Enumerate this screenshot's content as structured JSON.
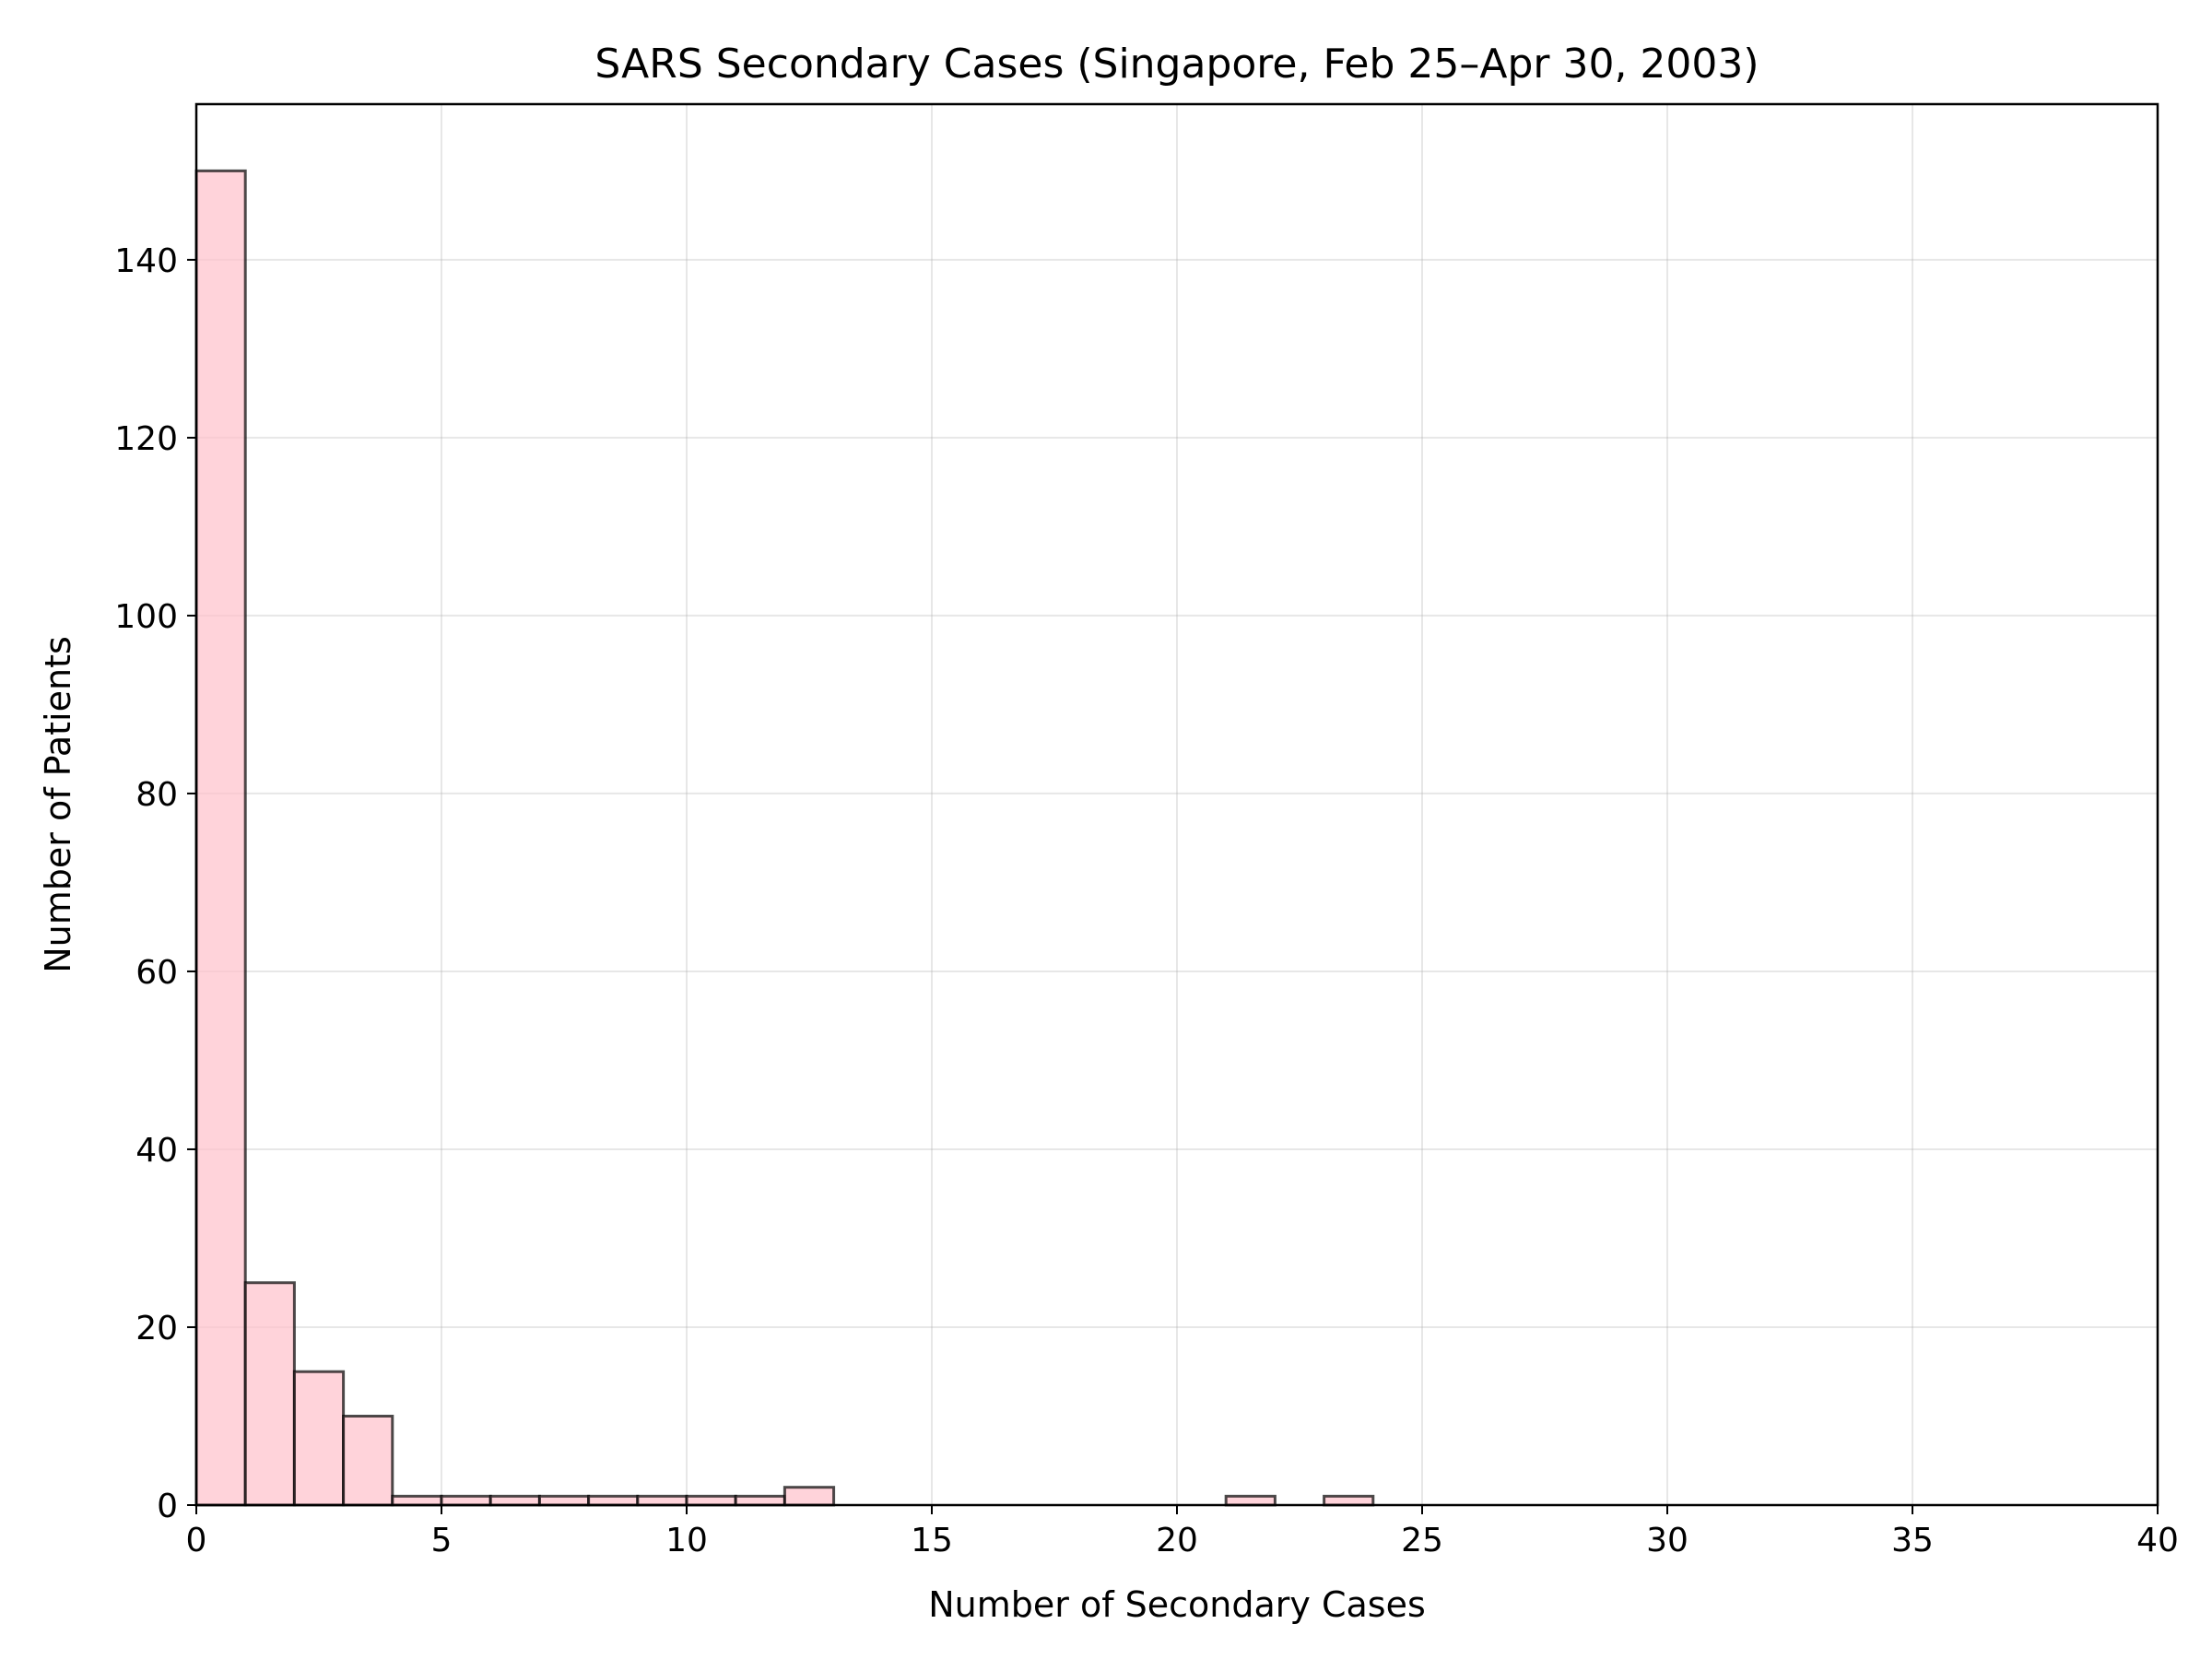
{
  "chart_data": {
    "type": "bar",
    "title": "SARS Secondary Cases (Singapore, Feb 25–Apr 30, 2003)",
    "xlabel": "Number of Secondary Cases",
    "ylabel": "Number of Patients",
    "xlim": [
      0,
      40
    ],
    "ylim": [
      0,
      157.5
    ],
    "xticks": [
      0,
      5,
      10,
      15,
      20,
      25,
      30,
      35,
      40
    ],
    "yticks": [
      0,
      20,
      40,
      60,
      80,
      100,
      120,
      140
    ],
    "grid": true,
    "legend": "none",
    "bin_width": 1,
    "bins": [
      {
        "x0": 0,
        "x1": 1,
        "count": 150
      },
      {
        "x0": 1,
        "x1": 2,
        "count": 25
      },
      {
        "x0": 2,
        "x1": 3,
        "count": 15
      },
      {
        "x0": 3,
        "x1": 4,
        "count": 10
      },
      {
        "x0": 4,
        "x1": 5,
        "count": 1
      },
      {
        "x0": 5,
        "x1": 6,
        "count": 1
      },
      {
        "x0": 6,
        "x1": 7,
        "count": 1
      },
      {
        "x0": 7,
        "x1": 8,
        "count": 1
      },
      {
        "x0": 8,
        "x1": 9,
        "count": 1
      },
      {
        "x0": 9,
        "x1": 10,
        "count": 1
      },
      {
        "x0": 10,
        "x1": 11,
        "count": 1
      },
      {
        "x0": 11,
        "x1": 12,
        "count": 1
      },
      {
        "x0": 12,
        "x1": 13,
        "count": 2
      },
      {
        "x0": 21,
        "x1": 22,
        "count": 1
      },
      {
        "x0": 23,
        "x1": 24,
        "count": 1
      }
    ],
    "colors": {
      "bar_fill": "#ffc0cb",
      "bar_edge": "#000000"
    }
  }
}
